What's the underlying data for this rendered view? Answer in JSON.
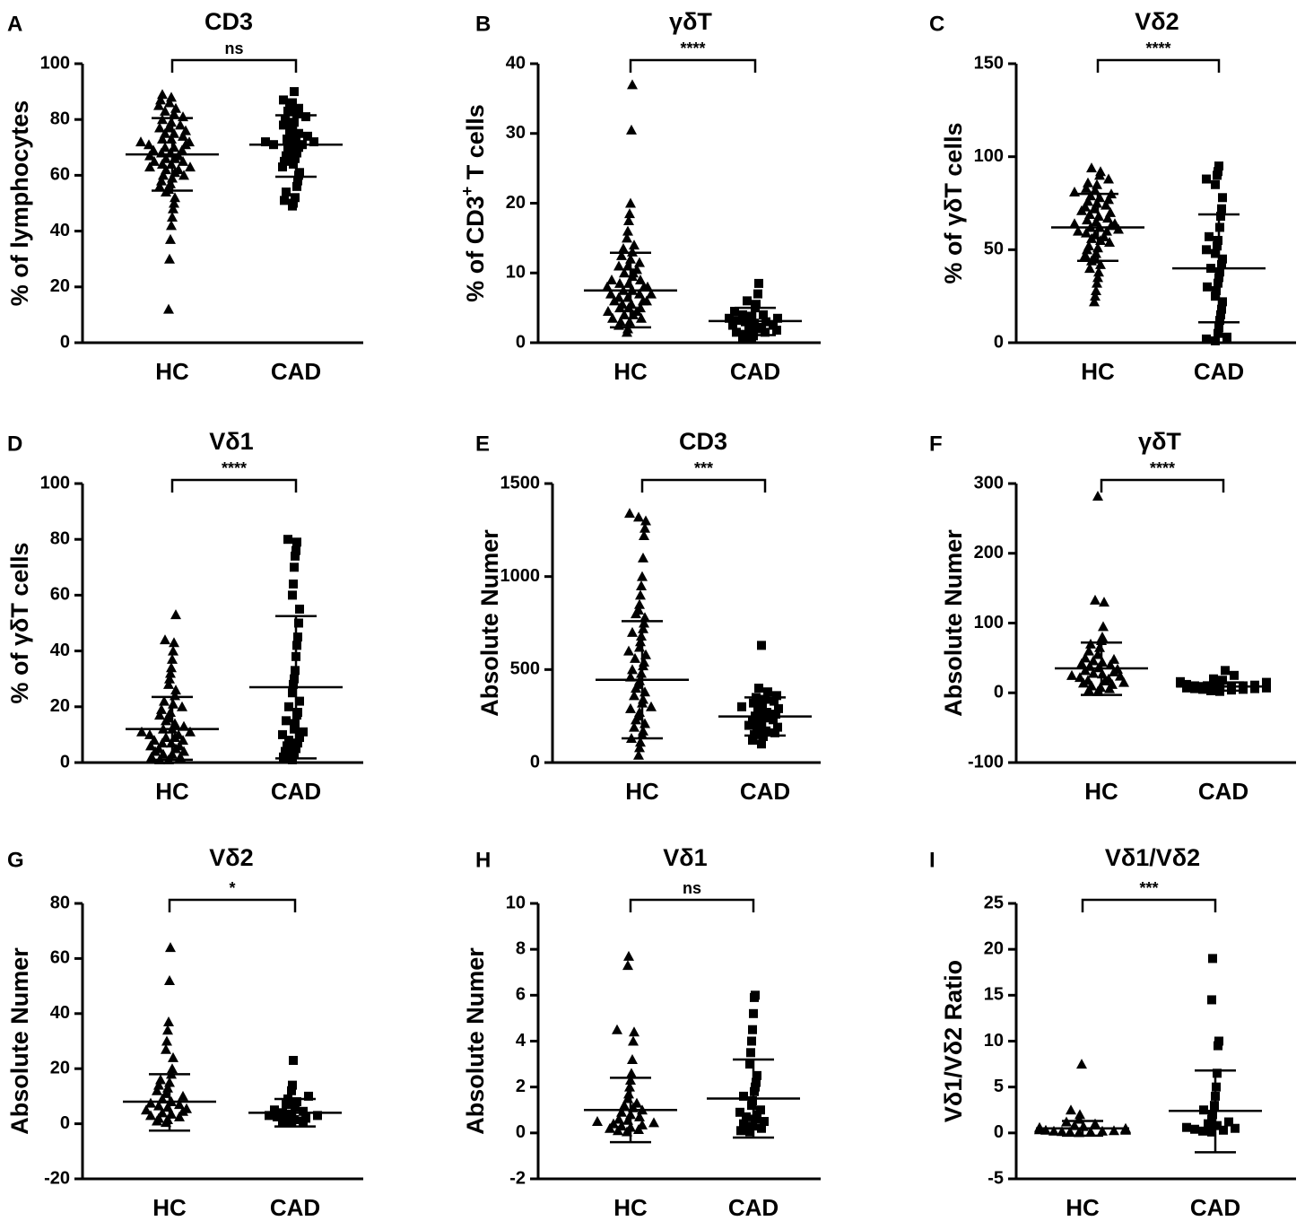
{
  "chart_data": [
    {
      "panel": "A",
      "type": "scatter",
      "title": "CD3",
      "ylabel": "% of lymphocytes",
      "categories": [
        "HC",
        "CAD"
      ],
      "ylim": [
        0,
        100
      ],
      "yticks": [
        0,
        20,
        40,
        60,
        80,
        100
      ],
      "significance": "ns",
      "series": [
        {
          "name": "HC",
          "marker": "triangle",
          "mean": 67.5,
          "sd_low": 54.5,
          "sd_high": 80.5,
          "values": [
            12,
            30,
            37,
            42,
            45,
            48,
            50,
            52,
            54,
            55,
            56,
            57,
            58,
            59,
            60,
            60,
            61,
            62,
            62,
            63,
            63,
            64,
            64,
            65,
            65,
            66,
            66,
            67,
            67,
            68,
            68,
            69,
            69,
            70,
            70,
            71,
            71,
            72,
            72,
            73,
            73,
            74,
            75,
            75,
            76,
            77,
            77,
            78,
            79,
            80,
            81,
            82,
            83,
            84,
            85,
            86,
            87,
            88,
            89
          ]
        },
        {
          "name": "CAD",
          "marker": "square",
          "mean": 71,
          "sd_low": 59.5,
          "sd_high": 81.5,
          "values": [
            49,
            50,
            51,
            52,
            54,
            56,
            58,
            60,
            61,
            63,
            64,
            65,
            66,
            67,
            68,
            69,
            70,
            70,
            71,
            71,
            72,
            72,
            73,
            73,
            74,
            75,
            76,
            77,
            78,
            79,
            80,
            81,
            82,
            83,
            84,
            85,
            86,
            87,
            90
          ]
        }
      ]
    },
    {
      "panel": "B",
      "type": "scatter",
      "title": "γδT",
      "ylabel": "% of CD3⁺ T cells",
      "categories": [
        "HC",
        "CAD"
      ],
      "ylim": [
        0,
        40
      ],
      "yticks": [
        0,
        10,
        20,
        30,
        40
      ],
      "significance": "****",
      "series": [
        {
          "name": "HC",
          "marker": "triangle",
          "mean": 7.5,
          "sd_low": 2.2,
          "sd_high": 12.9,
          "values": [
            1.5,
            2,
            2.5,
            3,
            3,
            3.5,
            3.5,
            4,
            4,
            4.5,
            4.5,
            5,
            5,
            5,
            5.5,
            5.5,
            6,
            6,
            6,
            6.5,
            6.5,
            7,
            7,
            7,
            7.5,
            7.5,
            8,
            8,
            8,
            8.5,
            8.5,
            9,
            9,
            9.5,
            10,
            10,
            10.5,
            11,
            11,
            11.5,
            12,
            12.5,
            13,
            13.5,
            14,
            15,
            16,
            17.5,
            18.5,
            20,
            30.5,
            37
          ]
        },
        {
          "name": "CAD",
          "marker": "square",
          "mean": 3.1,
          "sd_low": 1.1,
          "sd_high": 5.0,
          "values": [
            0.5,
            0.8,
            1,
            1.2,
            1.5,
            1.5,
            1.8,
            2,
            2,
            2.2,
            2.5,
            2.5,
            2.8,
            3,
            3,
            3.2,
            3.5,
            3.5,
            3.8,
            4,
            4,
            4.5,
            5,
            5.5,
            6,
            7,
            8.5
          ]
        }
      ]
    },
    {
      "panel": "C",
      "type": "scatter",
      "title": "Vδ2",
      "ylabel": "% of γδT cells",
      "categories": [
        "HC",
        "CAD"
      ],
      "ylim": [
        0,
        150
      ],
      "yticks": [
        0,
        50,
        100,
        150
      ],
      "significance": "****",
      "series": [
        {
          "name": "HC",
          "marker": "triangle",
          "mean": 62,
          "sd_low": 44,
          "sd_high": 80,
          "values": [
            22,
            25,
            28,
            32,
            35,
            38,
            40,
            42,
            44,
            45,
            47,
            48,
            50,
            51,
            52,
            54,
            55,
            56,
            57,
            58,
            59,
            60,
            60,
            61,
            62,
            62,
            63,
            64,
            64,
            65,
            66,
            67,
            68,
            69,
            70,
            71,
            72,
            73,
            74,
            75,
            76,
            77,
            78,
            79,
            80,
            81,
            82,
            83,
            85,
            86,
            88,
            90,
            92,
            94
          ]
        },
        {
          "name": "CAD",
          "marker": "square",
          "mean": 40,
          "sd_low": 11,
          "sd_high": 69,
          "values": [
            1,
            2,
            3,
            5,
            8,
            12,
            15,
            18,
            22,
            25,
            28,
            30,
            32,
            35,
            38,
            40,
            42,
            45,
            48,
            50,
            52,
            55,
            57,
            62,
            68,
            72,
            78,
            85,
            88,
            90,
            92,
            95
          ]
        }
      ]
    },
    {
      "panel": "D",
      "type": "scatter",
      "title": "Vδ1",
      "ylabel": "% of γδT cells",
      "categories": [
        "HC",
        "CAD"
      ],
      "ylim": [
        0,
        100
      ],
      "yticks": [
        0,
        20,
        40,
        60,
        80,
        100
      ],
      "significance": "****",
      "series": [
        {
          "name": "HC",
          "marker": "triangle",
          "mean": 12,
          "sd_low": 1,
          "sd_high": 23.5,
          "values": [
            1,
            1,
            2,
            2,
            3,
            3,
            4,
            4,
            5,
            5,
            6,
            6,
            7,
            7,
            8,
            8,
            9,
            9,
            10,
            10,
            11,
            11,
            12,
            12,
            13,
            14,
            15,
            16,
            17,
            18,
            19,
            20,
            21,
            22,
            24,
            26,
            28,
            30,
            32,
            34,
            37,
            40,
            43,
            44,
            53
          ]
        },
        {
          "name": "CAD",
          "marker": "square",
          "mean": 27,
          "sd_low": 1.5,
          "sd_high": 52.5,
          "values": [
            1,
            2,
            3,
            4,
            5,
            6,
            7,
            8,
            9,
            10,
            11,
            12,
            14,
            15,
            17,
            18,
            20,
            22,
            25,
            28,
            30,
            33,
            38,
            42,
            45,
            50,
            55,
            60,
            64,
            70,
            74,
            76,
            79,
            80
          ]
        }
      ]
    },
    {
      "panel": "E",
      "type": "scatter",
      "title": "CD3",
      "ylabel": "Absolute Numer",
      "categories": [
        "HC",
        "CAD"
      ],
      "ylim": [
        0,
        1500
      ],
      "yticks": [
        0,
        500,
        1000,
        1500
      ],
      "significance": "***",
      "series": [
        {
          "name": "HC",
          "marker": "triangle",
          "mean": 445,
          "sd_low": 130,
          "sd_high": 760,
          "values": [
            40,
            80,
            110,
            130,
            150,
            170,
            190,
            210,
            230,
            250,
            270,
            290,
            300,
            320,
            340,
            360,
            380,
            400,
            420,
            440,
            460,
            480,
            500,
            520,
            540,
            560,
            580,
            600,
            620,
            650,
            680,
            700,
            720,
            750,
            780,
            800,
            820,
            850,
            900,
            950,
            1000,
            1100,
            1220,
            1260,
            1300,
            1320,
            1340
          ]
        },
        {
          "name": "CAD",
          "marker": "square",
          "mean": 248,
          "sd_low": 145,
          "sd_high": 350,
          "values": [
            100,
            120,
            140,
            150,
            160,
            170,
            180,
            190,
            200,
            210,
            220,
            230,
            240,
            250,
            260,
            270,
            280,
            290,
            300,
            310,
            320,
            330,
            340,
            350,
            360,
            380,
            400,
            630
          ]
        }
      ]
    },
    {
      "panel": "F",
      "type": "scatter",
      "title": "γδT",
      "ylabel": "Absolute Numer",
      "categories": [
        "HC",
        "CAD"
      ],
      "ylim": [
        -100,
        300
      ],
      "yticks": [
        -100,
        0,
        100,
        200,
        300
      ],
      "significance": "****",
      "series": [
        {
          "name": "HC",
          "marker": "triangle",
          "mean": 35,
          "sd_low": -3,
          "sd_high": 72,
          "values": [
            2,
            4,
            6,
            8,
            10,
            12,
            14,
            15,
            17,
            18,
            20,
            22,
            24,
            25,
            27,
            28,
            30,
            32,
            34,
            36,
            38,
            40,
            42,
            44,
            46,
            48,
            50,
            55,
            60,
            65,
            70,
            75,
            80,
            95,
            130,
            133,
            282
          ]
        },
        {
          "name": "CAD",
          "marker": "square",
          "mean": 9,
          "sd_low": 3,
          "sd_high": 15,
          "values": [
            2,
            3,
            4,
            5,
            5,
            6,
            6,
            7,
            7,
            8,
            8,
            9,
            9,
            10,
            10,
            11,
            12,
            13,
            14,
            15,
            16,
            18,
            20,
            25,
            32
          ]
        }
      ]
    },
    {
      "panel": "G",
      "type": "scatter",
      "title": "Vδ2",
      "ylabel": "Absolute Numer",
      "categories": [
        "HC",
        "CAD"
      ],
      "ylim": [
        -20,
        80
      ],
      "yticks": [
        -20,
        0,
        20,
        40,
        60,
        80
      ],
      "significance": "*",
      "series": [
        {
          "name": "HC",
          "marker": "triangle",
          "mean": 8,
          "sd_low": -2.5,
          "sd_high": 18,
          "values": [
            0.5,
            1,
            1.5,
            2,
            2.5,
            3,
            3.5,
            4,
            4.5,
            5,
            5.5,
            6,
            6.5,
            7,
            7.5,
            8,
            9,
            10,
            11,
            12,
            13,
            14,
            15,
            16,
            18,
            20,
            24,
            27,
            30,
            34,
            37,
            52,
            64
          ]
        },
        {
          "name": "CAD",
          "marker": "square",
          "mean": 4,
          "sd_low": -1,
          "sd_high": 9,
          "values": [
            0.5,
            1,
            1,
            1.5,
            2,
            2,
            2.5,
            3,
            3,
            3.5,
            4,
            4.5,
            5,
            6,
            7,
            8,
            9,
            10,
            12,
            14,
            23
          ]
        }
      ]
    },
    {
      "panel": "H",
      "type": "scatter",
      "title": "Vδ1",
      "ylabel": "Absolute Numer",
      "categories": [
        "HC",
        "CAD"
      ],
      "ylim": [
        -2,
        10
      ],
      "yticks": [
        -2,
        0,
        2,
        4,
        6,
        8,
        10
      ],
      "significance": "ns",
      "series": [
        {
          "name": "HC",
          "marker": "triangle",
          "mean": 1.0,
          "sd_low": -0.4,
          "sd_high": 2.4,
          "values": [
            0.05,
            0.1,
            0.15,
            0.2,
            0.25,
            0.3,
            0.35,
            0.4,
            0.45,
            0.5,
            0.55,
            0.6,
            0.7,
            0.8,
            0.9,
            1.0,
            1.1,
            1.2,
            1.3,
            1.5,
            1.7,
            2.0,
            2.3,
            2.6,
            3.2,
            4.0,
            4.4,
            4.5,
            7.3,
            7.7
          ]
        },
        {
          "name": "CAD",
          "marker": "square",
          "mean": 1.5,
          "sd_low": -0.2,
          "sd_high": 3.2,
          "values": [
            0.05,
            0.1,
            0.2,
            0.3,
            0.4,
            0.5,
            0.6,
            0.7,
            0.8,
            0.9,
            1.0,
            1.2,
            1.4,
            1.6,
            1.8,
            2.0,
            2.2,
            2.5,
            3.0,
            3.5,
            4.0,
            4.5,
            5.2,
            5.9,
            6.0
          ]
        }
      ]
    },
    {
      "panel": "I",
      "type": "scatter",
      "title": "Vδ1/Vδ2",
      "ylabel": "Vδ1/Vδ2 Ratio",
      "categories": [
        "HC",
        "CAD"
      ],
      "ylim": [
        -5,
        25
      ],
      "yticks": [
        -5,
        0,
        5,
        10,
        15,
        20,
        25
      ],
      "significance": "***",
      "series": [
        {
          "name": "HC",
          "marker": "triangle",
          "mean": 0.5,
          "sd_low": -0.3,
          "sd_high": 1.3,
          "values": [
            0.05,
            0.1,
            0.1,
            0.15,
            0.2,
            0.2,
            0.25,
            0.3,
            0.3,
            0.35,
            0.4,
            0.45,
            0.5,
            0.6,
            0.7,
            0.8,
            1.0,
            1.2,
            1.5,
            2.0,
            2.5,
            7.5
          ]
        },
        {
          "name": "CAD",
          "marker": "square",
          "mean": 2.4,
          "sd_low": -2.1,
          "sd_high": 6.8,
          "values": [
            0.1,
            0.2,
            0.3,
            0.4,
            0.5,
            0.6,
            0.8,
            1.0,
            1.2,
            1.5,
            2.0,
            2.5,
            3.0,
            4.0,
            5.0,
            6.5,
            9.5,
            10.0,
            14.5,
            19.0
          ]
        }
      ]
    }
  ]
}
